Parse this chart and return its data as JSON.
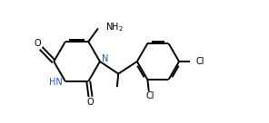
{
  "bg_color": "#ffffff",
  "line_color": "#000000",
  "line_width": 1.4,
  "font_size": 7.0,
  "text_color": "#000000",
  "blue_color": "#2255cc",
  "figsize": [
    2.96,
    1.36
  ],
  "dpi": 100,
  "xlim": [
    0,
    10.5
  ],
  "ylim": [
    0,
    4.5
  ]
}
